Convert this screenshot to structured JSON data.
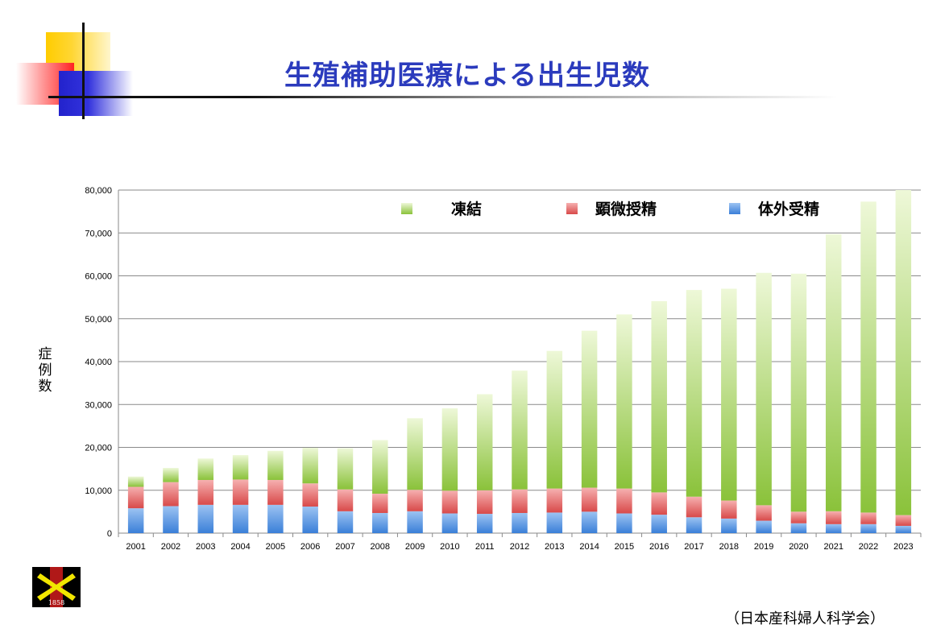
{
  "slide": {
    "title": "生殖補助医療による出生児数",
    "source": "（日本産科婦人科学会）",
    "logo_year": "1858"
  },
  "chart_data": {
    "type": "bar",
    "stacked": true,
    "title": "",
    "xlabel": "",
    "ylabel": "症例数",
    "ylim": [
      0,
      80000
    ],
    "yticks": [
      0,
      10000,
      20000,
      30000,
      40000,
      50000,
      60000,
      70000,
      80000
    ],
    "ytick_labels": [
      "0",
      "10,000",
      "20,000",
      "30,000",
      "40,000",
      "50,000",
      "60,000",
      "70,000",
      "80,000"
    ],
    "grid": true,
    "legend_position": "top",
    "categories": [
      "2001",
      "2002",
      "2003",
      "2004",
      "2005",
      "2006",
      "2007",
      "2008",
      "2009",
      "2010",
      "2011",
      "2012",
      "2013",
      "2014",
      "2015",
      "2016",
      "2017",
      "2018",
      "2019",
      "2020",
      "2021",
      "2022",
      "2023"
    ],
    "series": [
      {
        "name": "体外受精",
        "color": "#4a8fe0",
        "values": [
          5800,
          6300,
          6600,
          6600,
          6600,
          6200,
          5100,
          4700,
          5100,
          4600,
          4500,
          4700,
          4800,
          5000,
          4600,
          4300,
          3700,
          3400,
          2900,
          2300,
          2100,
          2100,
          1700
        ]
      },
      {
        "name": "顕微授精",
        "color": "#e05555",
        "values": [
          5000,
          5600,
          5800,
          5900,
          5800,
          5400,
          5100,
          4500,
          5000,
          5300,
          5500,
          5500,
          5600,
          5600,
          5800,
          5200,
          4800,
          4200,
          3600,
          2700,
          3000,
          2700,
          2500
        ]
      },
      {
        "name": "凍結",
        "color": "#8dc63f",
        "values": [
          2400,
          3300,
          5000,
          5700,
          6800,
          8300,
          9600,
          12500,
          16700,
          19200,
          22400,
          27700,
          32100,
          36600,
          40600,
          44600,
          48200,
          49400,
          54200,
          55500,
          64600,
          72500,
          75800
        ]
      }
    ]
  }
}
